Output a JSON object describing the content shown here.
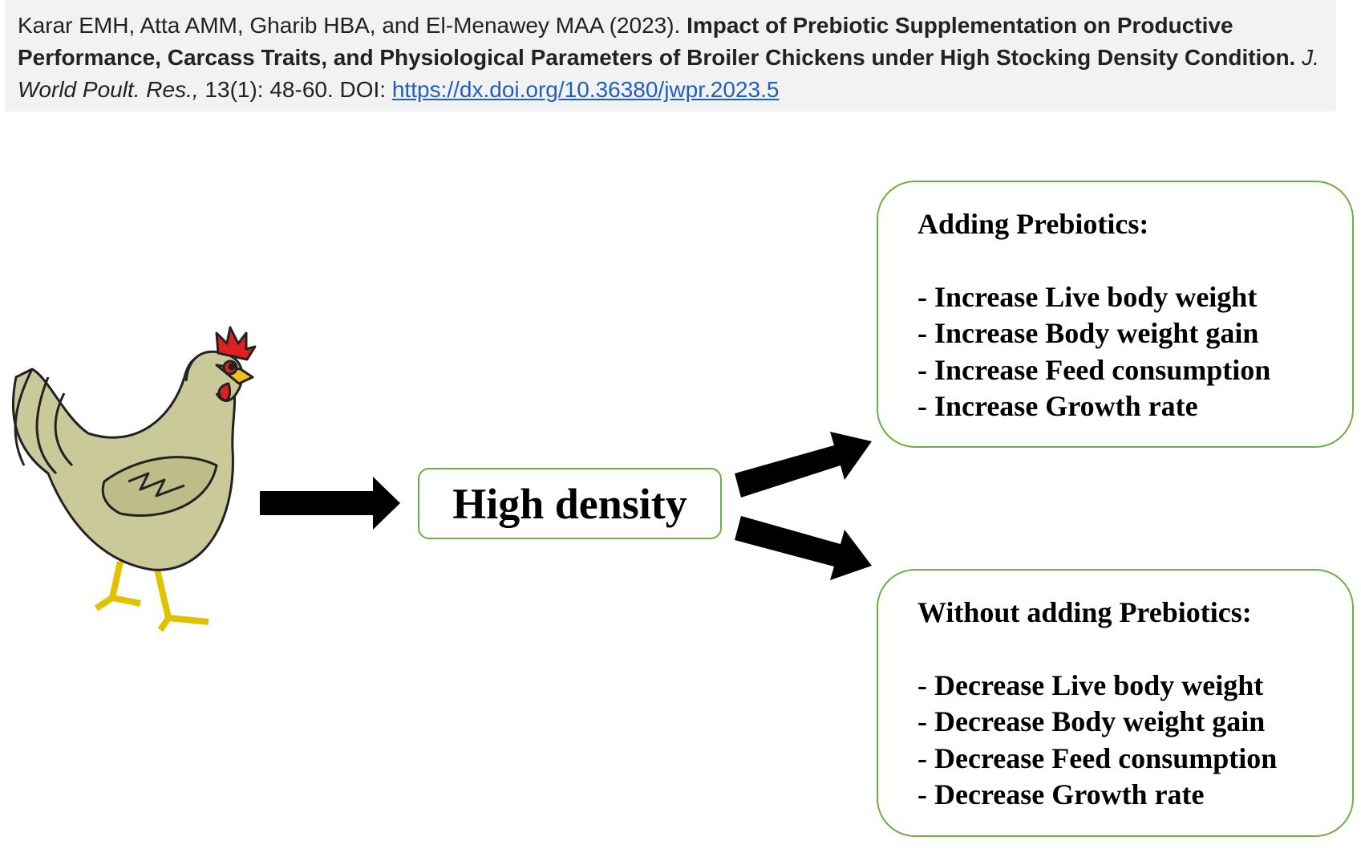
{
  "citation": {
    "authors": "Karar EMH, Atta AMM, Gharib HBA, and El-Menawey MAA (2023).",
    "title": "Impact of Prebiotic Supplementation on Productive Performance, Carcass Traits, and Physiological Parameters of Broiler Chickens under High Stocking Density Condition.",
    "journal": "J. World Poult. Res.,",
    "volume": "13(1): 48-60. DOI:",
    "doi_url": "https://dx.doi.org/10.36380/jwpr.2023.5"
  },
  "center": {
    "label": "High density"
  },
  "outcomes": [
    {
      "heading": "Adding Prebiotics:",
      "items": [
        "- Increase Live body weight",
        "- Increase Body weight gain",
        "- Increase Feed consumption",
        "- Increase Growth rate"
      ]
    },
    {
      "heading": "Without adding Prebiotics:",
      "items": [
        "- Decrease Live body weight",
        "- Decrease Body weight gain",
        "- Decrease Feed consumption",
        "- Decrease Growth rate"
      ]
    }
  ]
}
